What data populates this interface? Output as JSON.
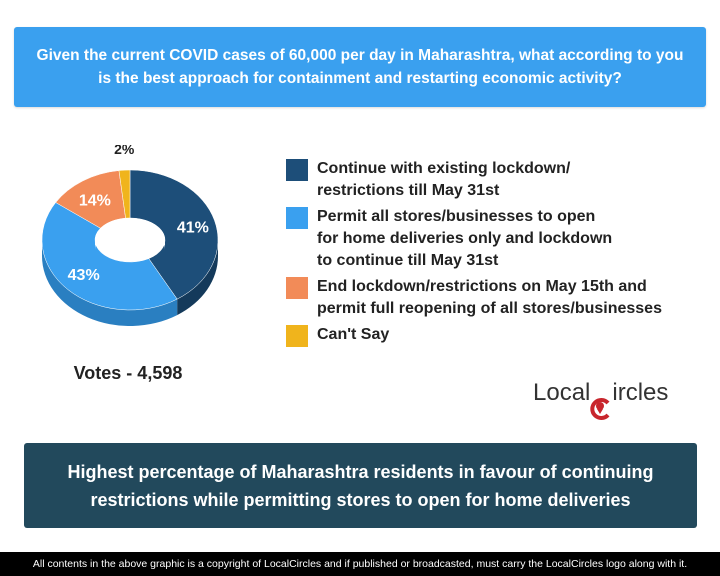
{
  "header": {
    "question": "Given the current COVID cases of 60,000 per day in Maharashtra, what according to you is the best approach for containment and restarting economic activity?"
  },
  "chart_data": {
    "type": "pie",
    "style": "3d-donut",
    "categories": [
      "Continue with existing lockdown/\nrestrictions till May 31st",
      "Permit all stores/businesses to open\nfor home deliveries only and lockdown\nto continue till May 31st",
      "End lockdown/restrictions on May 15th and\npermit full reopening of all stores/businesses",
      "Can't Say"
    ],
    "values": [
      41,
      43,
      14,
      2
    ],
    "value_labels": [
      "41%",
      "43%",
      "14%",
      "2%"
    ],
    "colors": [
      "#1d4e79",
      "#3aa0ef",
      "#f28b58",
      "#f0b41c"
    ],
    "side_colors": [
      "#143a5b",
      "#2a7fc1",
      "#c96d3e",
      "#c28f12"
    ],
    "legend_position": "right"
  },
  "votes_label": "Votes - 4,598",
  "brand": {
    "name_part1": "Local",
    "name_part2": "ircles",
    "accent": "#c8262d"
  },
  "conclusion": "Highest percentage of Maharashtra residents in favour of continuing restrictions while permitting stores to open for home deliveries",
  "footer": "All contents in the above graphic is a copyright of LocalCircles and if published or broadcasted, must carry the LocalCircles logo along with it."
}
